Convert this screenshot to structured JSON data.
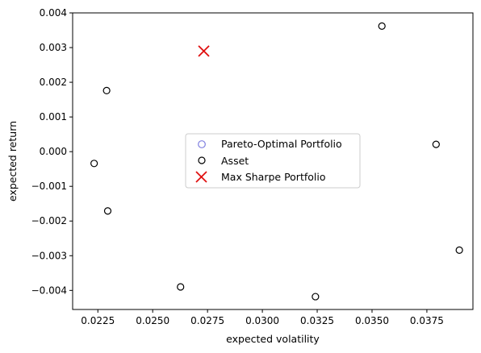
{
  "chart_data": {
    "type": "scatter",
    "xlabel": "expected volatility",
    "ylabel": "expected return",
    "xlim": [
      0.02135,
      0.0396
    ],
    "ylim": [
      -0.00455,
      0.004
    ],
    "xticks": [
      0.0225,
      0.025,
      0.0275,
      0.03,
      0.0325,
      0.035,
      0.0375
    ],
    "xtick_labels": [
      "0.0225",
      "0.0250",
      "0.0275",
      "0.0300",
      "0.0325",
      "0.0350",
      "0.0375"
    ],
    "yticks": [
      0.004,
      0.003,
      0.002,
      0.001,
      0.0,
      -0.001,
      -0.002,
      -0.003,
      -0.004
    ],
    "ytick_labels": [
      "0.004",
      "0.003",
      "0.002",
      "0.001",
      "0.000",
      "−0.001",
      "−0.002",
      "−0.003",
      "−0.004"
    ],
    "grid": false,
    "legend_position": "center",
    "series": [
      {
        "name": "Pareto-Optimal Portfolio",
        "marker": "open-circle",
        "color": "#8080e0",
        "points": []
      },
      {
        "name": "Asset",
        "marker": "open-circle",
        "color": "#000000",
        "points": [
          {
            "x": 0.0229,
            "y": 0.00176
          },
          {
            "x": 0.02233,
            "y": -0.00034
          },
          {
            "x": 0.02295,
            "y": -0.00171
          },
          {
            "x": 0.02627,
            "y": -0.0039
          },
          {
            "x": 0.03242,
            "y": -0.00418
          },
          {
            "x": 0.03545,
            "y": 0.00362
          },
          {
            "x": 0.03792,
            "y": 0.00021
          },
          {
            "x": 0.03898,
            "y": -0.00284
          }
        ]
      },
      {
        "name": "Max Sharpe Portfolio",
        "marker": "x",
        "color": "#e01010",
        "points": [
          {
            "x": 0.02733,
            "y": 0.0029
          }
        ]
      }
    ]
  }
}
